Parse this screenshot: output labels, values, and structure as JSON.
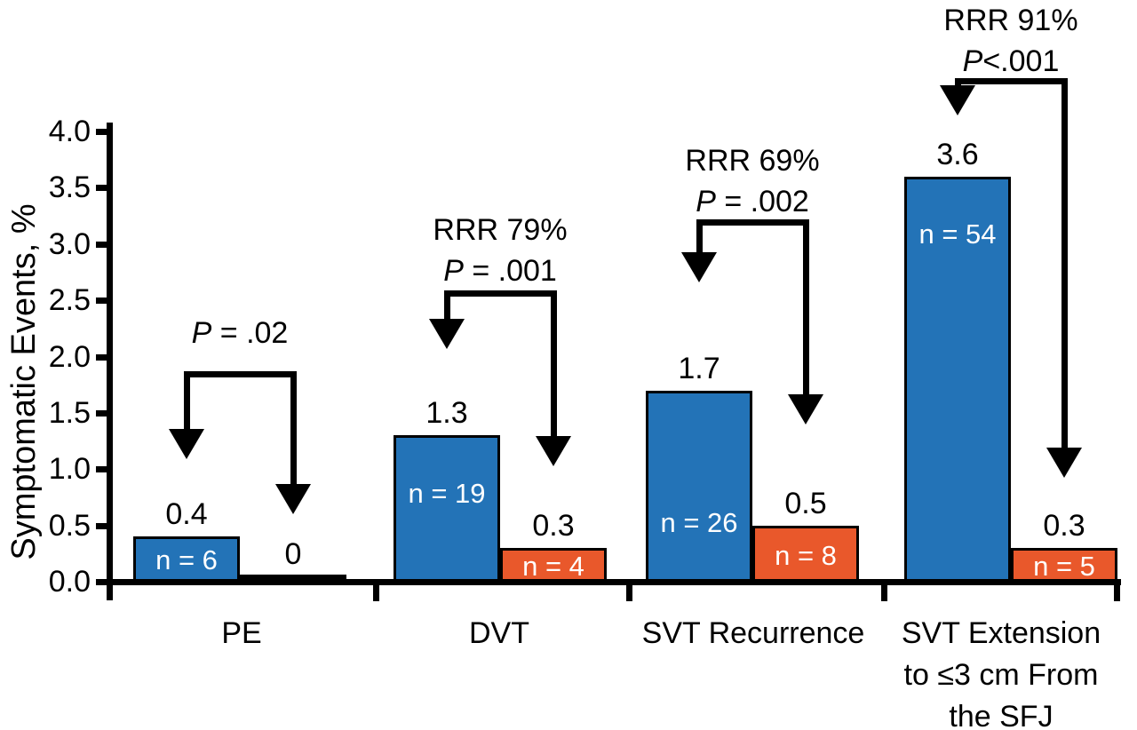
{
  "figure": {
    "background": "#ffffff"
  },
  "chart_data": {
    "type": "bar",
    "title": "",
    "xlabel": "",
    "ylabel": "Symptomatic Events, %",
    "ylim": [
      0,
      4.0
    ],
    "ytick_step": 0.5,
    "yticks": [
      "4.0",
      "3.5",
      "3.0",
      "2.5",
      "2.0",
      "1.5",
      "1.0",
      "0.5",
      "0.0"
    ],
    "grid": false,
    "legend": "none",
    "colors": {
      "blue_bar": "#2373B7",
      "orange_bar": "#E9582B",
      "axis": "#000000",
      "bar_border": "#000000",
      "n_label_text": "#ffffff",
      "text": "#000000"
    },
    "categories": [
      "PE",
      "DVT",
      "SVT Recurrence",
      "SVT Extension to ≤3 cm From the SFJ"
    ],
    "series": [
      {
        "name": "blue",
        "values": [
          0.4,
          1.3,
          1.7,
          3.6
        ]
      },
      {
        "name": "orange",
        "values": [
          0,
          0.3,
          0.5,
          0.3
        ]
      }
    ],
    "groups": [
      {
        "category_lines": [
          "PE"
        ],
        "bars": [
          {
            "series": "blue",
            "value": 0.4,
            "value_label": "0.4",
            "n_label": "n = 6"
          },
          {
            "series": "orange",
            "value": 0,
            "value_label": "0",
            "n_label": ""
          }
        ],
        "annotation": {
          "rrr": "",
          "p_symbol": "P",
          "p_rest": " = .02"
        }
      },
      {
        "category_lines": [
          "DVT"
        ],
        "bars": [
          {
            "series": "blue",
            "value": 1.3,
            "value_label": "1.3",
            "n_label": "n = 19"
          },
          {
            "series": "orange",
            "value": 0.3,
            "value_label": "0.3",
            "n_label": "n = 4"
          }
        ],
        "annotation": {
          "rrr": "RRR 79%",
          "p_symbol": "P",
          "p_rest": " = .001"
        }
      },
      {
        "category_lines": [
          "SVT Recurrence"
        ],
        "bars": [
          {
            "series": "blue",
            "value": 1.7,
            "value_label": "1.7",
            "n_label": "n = 26"
          },
          {
            "series": "orange",
            "value": 0.5,
            "value_label": "0.5",
            "n_label": "n = 8"
          }
        ],
        "annotation": {
          "rrr": "RRR 69%",
          "p_symbol": "P",
          "p_rest": " = .002"
        }
      },
      {
        "category_lines": [
          "SVT Extension",
          "to ≤3 cm From",
          "the SFJ"
        ],
        "bars": [
          {
            "series": "blue",
            "value": 3.6,
            "value_label": "3.6",
            "n_label": "n = 54"
          },
          {
            "series": "orange",
            "value": 0.3,
            "value_label": "0.3",
            "n_label": "n = 5"
          }
        ],
        "annotation": {
          "rrr": "RRR 91%",
          "p_symbol": "P",
          "p_rest": "<.001"
        }
      }
    ]
  }
}
